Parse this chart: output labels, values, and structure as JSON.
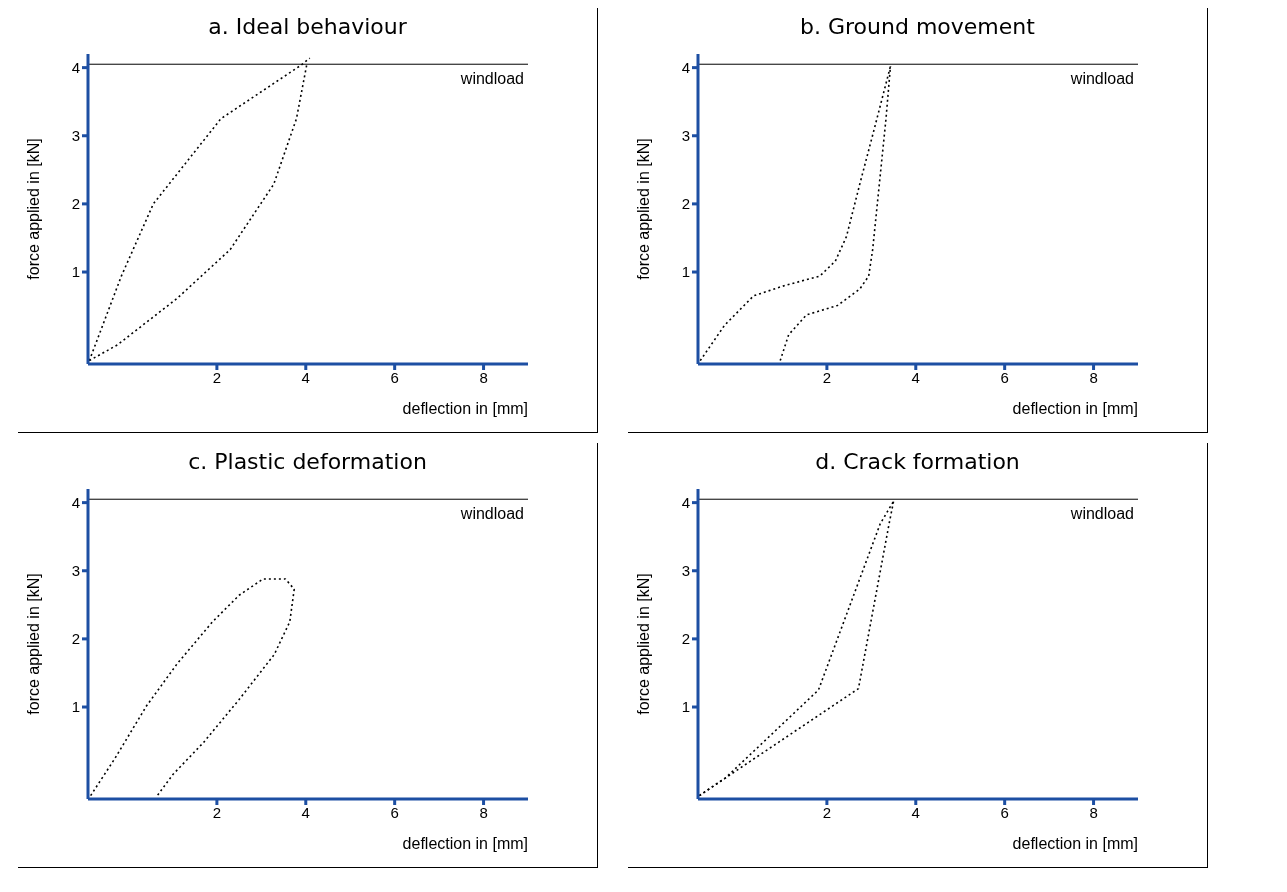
{
  "chart_data": [
    {
      "type": "line",
      "title": "a. Ideal behaviour",
      "xlabel": "deflection in [mm]",
      "ylabel": "force applied in [kN]",
      "xlim": [
        -0.9,
        9
      ],
      "ylim": [
        -0.35,
        4.2
      ],
      "xticks": [
        2,
        4,
        6,
        8
      ],
      "yticks": [
        1,
        2,
        3,
        4
      ],
      "marker": "none",
      "line_style": "dotted",
      "ref_lines": [
        {
          "axis": "y",
          "value": 4.05,
          "label": "windload"
        }
      ],
      "series": [
        {
          "color": "#000000",
          "x": [
            -0.87,
            -0.15,
            0.57,
            2.09,
            3.88,
            4.09
          ],
          "values": [
            -0.3,
            0.94,
            2.0,
            3.25,
            4.03,
            4.14
          ]
        },
        {
          "color": "#000000",
          "x": [
            -0.87,
            -0.24,
            1.1,
            2.3,
            3.28,
            3.79,
            4.03
          ],
          "values": [
            -0.3,
            -0.07,
            0.61,
            1.33,
            2.29,
            3.25,
            4.07
          ]
        }
      ]
    },
    {
      "type": "line",
      "title": "b. Ground movement",
      "xlabel": "deflection in [mm]",
      "ylabel": "force applied in [kN]",
      "xlim": [
        -0.9,
        9
      ],
      "ylim": [
        -0.35,
        4.2
      ],
      "xticks": [
        2,
        4,
        6,
        8
      ],
      "yticks": [
        1,
        2,
        3,
        4
      ],
      "marker": "none",
      "line_style": "dotted",
      "ref_lines": [
        {
          "axis": "y",
          "value": 4.05,
          "label": "windload"
        }
      ],
      "series": [
        {
          "color": "#000000",
          "x": [
            -0.85,
            -0.3,
            0.35,
            1.04,
            1.84,
            2.19,
            2.44,
            2.74,
            3.03,
            3.28,
            3.43
          ],
          "values": [
            -0.3,
            0.22,
            0.65,
            0.8,
            0.94,
            1.16,
            1.52,
            2.29,
            3.01,
            3.64,
            4.02
          ]
        },
        {
          "color": "#000000",
          "x": [
            0.95,
            1.14,
            1.54,
            2.24,
            2.74,
            2.94,
            3.03,
            3.18,
            3.33,
            3.43
          ],
          "values": [
            -0.3,
            0.08,
            0.37,
            0.51,
            0.75,
            0.94,
            1.33,
            2.29,
            3.25,
            4.02
          ]
        }
      ]
    },
    {
      "type": "line",
      "title": "c. Plastic deformation",
      "xlabel": "deflection in [mm]",
      "ylabel": "force applied in [kN]",
      "xlim": [
        -0.9,
        9
      ],
      "ylim": [
        -0.35,
        4.2
      ],
      "xticks": [
        2,
        4,
        6,
        8
      ],
      "yticks": [
        1,
        2,
        3,
        4
      ],
      "marker": "none",
      "line_style": "dotted",
      "ref_lines": [
        {
          "axis": "y",
          "value": 4.05,
          "label": "windload"
        }
      ],
      "series": [
        {
          "color": "#000000",
          "x": [
            -0.84,
            -0.29,
            0.41,
            1.1,
            1.9,
            2.5,
            3.04,
            3.54,
            3.74,
            3.64,
            3.29,
            2.5,
            1.7,
            1.01,
            0.66
          ],
          "values": [
            -0.3,
            0.25,
            1.01,
            1.63,
            2.25,
            2.64,
            2.88,
            2.88,
            2.73,
            2.25,
            1.77,
            1.11,
            0.48,
            0.01,
            -0.3
          ]
        }
      ]
    },
    {
      "type": "line",
      "title": "d. Crack formation",
      "xlabel": "deflection in [mm]",
      "ylabel": "force applied in [kN]",
      "xlim": [
        -0.9,
        9
      ],
      "ylim": [
        -0.35,
        4.2
      ],
      "xticks": [
        2,
        4,
        6,
        8
      ],
      "yticks": [
        1,
        2,
        3,
        4
      ],
      "marker": "none",
      "line_style": "dotted",
      "ref_lines": [
        {
          "axis": "y",
          "value": 4.05,
          "label": "windload"
        }
      ],
      "series": [
        {
          "color": "#000000",
          "x": [
            -0.87,
            -0.28,
            1.81,
            3.2,
            3.5
          ],
          "values": [
            -0.3,
            -0.04,
            1.25,
            3.69,
            4.02
          ]
        },
        {
          "color": "#000000",
          "x": [
            -0.87,
            -0.28,
            2.71,
            3.4,
            3.5
          ],
          "values": [
            -0.3,
            -0.04,
            1.27,
            3.69,
            4.02
          ]
        }
      ]
    }
  ]
}
